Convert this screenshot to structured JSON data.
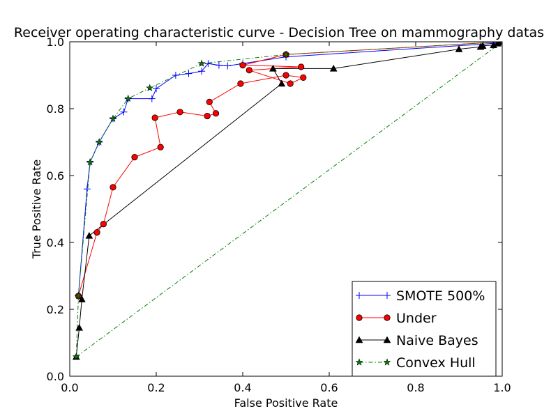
{
  "chart_data": {
    "type": "line",
    "title": "Receiver operating characteristic curve - Decision Tree on mammography datas",
    "xlabel": "False Positive Rate",
    "ylabel": "True Positive Rate",
    "xlim": [
      0.0,
      1.0
    ],
    "ylim": [
      0.0,
      1.0
    ],
    "xticks": [
      "0.0",
      "0.2",
      "0.4",
      "0.6",
      "0.8",
      "1.0"
    ],
    "yticks": [
      "0.0",
      "0.2",
      "0.4",
      "0.6",
      "0.8",
      "1.0"
    ],
    "grid": false,
    "legend_position": "bottom-right",
    "series": [
      {
        "name": "SMOTE 500%",
        "color": "#0000ff",
        "marker": "plus",
        "line_style": "solid",
        "x": [
          0.02,
          0.04,
          0.047,
          0.068,
          0.1,
          0.125,
          0.135,
          0.19,
          0.2,
          0.245,
          0.275,
          0.305,
          0.32,
          0.345,
          0.365,
          0.4,
          0.5,
          0.98,
          1.0
        ],
        "y": [
          0.24,
          0.56,
          0.64,
          0.7,
          0.77,
          0.79,
          0.83,
          0.83,
          0.86,
          0.9,
          0.905,
          0.912,
          0.935,
          0.93,
          0.928,
          0.935,
          0.955,
          0.995,
          1.0
        ]
      },
      {
        "name": "Under",
        "color": "#ff0000",
        "marker": "circle",
        "line_style": "solid",
        "x": [
          0.02,
          0.063,
          0.078,
          0.1,
          0.15,
          0.21,
          0.197,
          0.255,
          0.318,
          0.338,
          0.323,
          0.395,
          0.5,
          0.54,
          0.51,
          0.415,
          0.535,
          0.4,
          0.5,
          1.0
        ],
        "y": [
          0.24,
          0.43,
          0.455,
          0.565,
          0.655,
          0.685,
          0.773,
          0.79,
          0.778,
          0.786,
          0.82,
          0.875,
          0.9,
          0.893,
          0.875,
          0.915,
          0.925,
          0.93,
          0.962,
          1.0
        ]
      },
      {
        "name": "Naive Bayes",
        "color": "#000000",
        "marker": "triangle",
        "line_style": "solid",
        "x": [
          0.015,
          0.022,
          0.028,
          0.045,
          0.49,
          0.47,
          0.61,
          0.9,
          0.95,
          0.955,
          0.98,
          0.99,
          1.0
        ],
        "y": [
          0.058,
          0.145,
          0.23,
          0.42,
          0.875,
          0.92,
          0.92,
          0.978,
          0.985,
          0.988,
          0.99,
          0.995,
          1.0
        ]
      },
      {
        "name": "Convex Hull",
        "color": "#008000",
        "marker": "star",
        "line_style": "dashdot",
        "x": [
          0.015,
          0.02,
          0.047,
          0.068,
          0.1,
          0.135,
          0.185,
          0.305,
          0.5,
          1.0
        ],
        "y": [
          0.058,
          0.24,
          0.64,
          0.7,
          0.77,
          0.83,
          0.862,
          0.935,
          0.962,
          1.0
        ]
      },
      {
        "name": "",
        "color": "#008000",
        "marker": "none",
        "line_style": "dashdot",
        "x": [
          0.015,
          1.0
        ],
        "y": [
          0.058,
          1.0
        ]
      }
    ]
  }
}
